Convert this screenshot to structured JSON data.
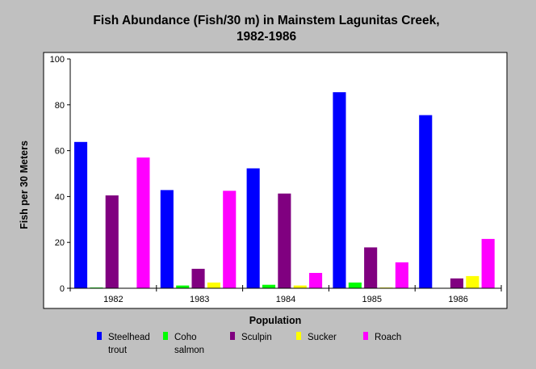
{
  "chart_data": {
    "type": "bar",
    "title_line1": "Fish Abundance (Fish/30 m) in Mainstem Lagunitas Creek,",
    "title_line2": "1982-1986",
    "xlabel": "Population",
    "ylabel": "Fish per 30 Meters",
    "ylim": [
      0,
      100
    ],
    "yticks": [
      0,
      20,
      40,
      60,
      80,
      100
    ],
    "categories": [
      "1982",
      "1983",
      "1984",
      "1985",
      "1986"
    ],
    "series": [
      {
        "name": "Steelhead trout",
        "legend_lines": [
          "Steelhead",
          "trout"
        ],
        "color": "#0000ff",
        "values": [
          63.8,
          42.8,
          52.3,
          85.5,
          75.5
        ]
      },
      {
        "name": "Coho salmon",
        "legend_lines": [
          "Coho",
          "salmon"
        ],
        "color": "#00ff00",
        "values": [
          0.3,
          1.2,
          1.5,
          2.5,
          0
        ]
      },
      {
        "name": "Sculpin",
        "legend_lines": [
          "Sculpin"
        ],
        "color": "#800080",
        "values": [
          40.5,
          8.5,
          41.3,
          17.8,
          4.3
        ]
      },
      {
        "name": "Sucker",
        "legend_lines": [
          "Sucker"
        ],
        "color": "#ffff00",
        "values": [
          0,
          2.5,
          1.2,
          0.3,
          5.3
        ]
      },
      {
        "name": "Roach",
        "legend_lines": [
          "Roach"
        ],
        "color": "#ff00ff",
        "values": [
          57,
          42.5,
          6.7,
          11.3,
          21.5
        ]
      }
    ],
    "grid": false,
    "legend_position": "bottom"
  }
}
